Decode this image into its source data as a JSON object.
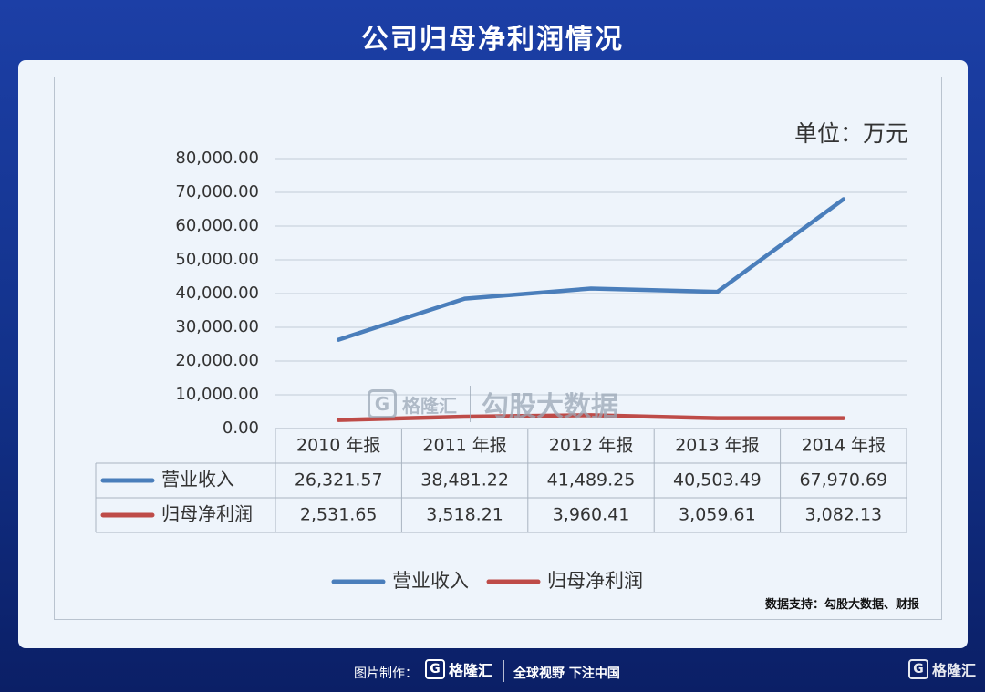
{
  "header": {
    "title": "公司归母净利润情况"
  },
  "unit_label": "单位：万元",
  "source_text": "数据支持：勾股大数据、财报",
  "watermark": {
    "icon": "gelonghui-logo-icon",
    "name": "格隆汇",
    "product": "勾股大数据"
  },
  "footer": {
    "credit_label": "图片制作：",
    "brand_name": "格隆汇",
    "slogan": "全球视野 下注中国",
    "brand_right_name": "格隆汇"
  },
  "colors": {
    "revenue": "#4a7ebb",
    "net_profit": "#be4b48",
    "background": "#1a3a9c"
  },
  "chart_data": {
    "type": "line",
    "title": "",
    "xlabel": "",
    "ylabel": "",
    "categories": [
      "2010 年报",
      "2011 年报",
      "2012 年报",
      "2013 年报",
      "2014 年报"
    ],
    "series": [
      {
        "name": "营业收入",
        "values": [
          26321.57,
          38481.22,
          41489.25,
          40503.49,
          67970.69
        ],
        "display": [
          "26,321.57",
          "38,481.22",
          "41,489.25",
          "40,503.49",
          "67,970.69"
        ]
      },
      {
        "name": "归母净利润",
        "values": [
          2531.65,
          3518.21,
          3960.41,
          3059.61,
          3082.13
        ],
        "display": [
          "2,531.65",
          "3,518.21",
          "3,960.41",
          "3,059.61",
          "3,082.13"
        ]
      }
    ],
    "ylim": [
      0,
      80000
    ],
    "yticks": [
      "0.00",
      "10,000.00",
      "20,000.00",
      "30,000.00",
      "40,000.00",
      "50,000.00",
      "60,000.00",
      "70,000.00",
      "80,000.00"
    ],
    "grid": true,
    "legend_position": "bottom",
    "data_table": true
  }
}
